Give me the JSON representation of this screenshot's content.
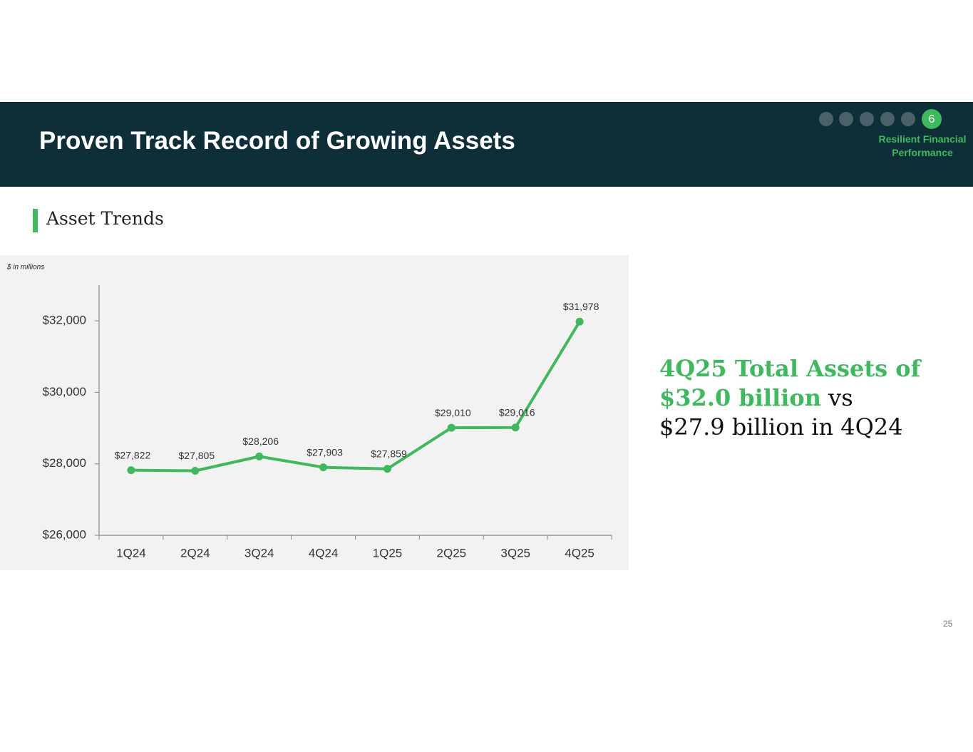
{
  "header": {
    "title": "Proven Track Record of Growing Assets",
    "section_number": "6",
    "section_label": "Resilient Financial Performance"
  },
  "subtitle": "Asset Trends",
  "chart_data": {
    "type": "line",
    "note": "$ in millions",
    "categories": [
      "1Q24",
      "2Q24",
      "3Q24",
      "4Q24",
      "1Q25",
      "2Q25",
      "3Q25",
      "4Q25"
    ],
    "values": [
      27822,
      27805,
      28206,
      27903,
      27859,
      29010,
      29016,
      31978
    ],
    "value_labels": [
      "$27,822",
      "$27,805",
      "$28,206",
      "$27,903",
      "$27,859",
      "$29,010",
      "$29,016",
      "$31,978"
    ],
    "color": "#3dba5c",
    "ylim": [
      26000,
      33000
    ],
    "yticks": [
      {
        "value": 26000,
        "label": "$26,000"
      },
      {
        "value": 28000,
        "label": "$28,000"
      },
      {
        "value": 30000,
        "label": "$30,000"
      },
      {
        "value": 32000,
        "label": "$32,000"
      }
    ]
  },
  "callout": {
    "highlight": "4Q25 Total Assets of $32.0 billion",
    "text": "vs $27.9 billion in 4Q24"
  },
  "page_number": "25"
}
